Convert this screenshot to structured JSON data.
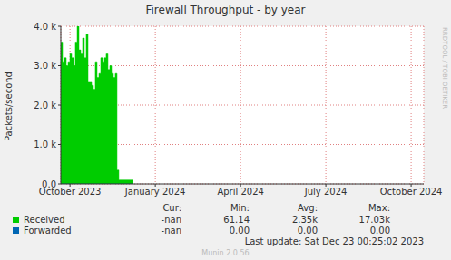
{
  "chart_data": {
    "type": "area",
    "title": "Firewall Throughput - by year",
    "y_label": "Packets/second",
    "side_text": "RRDTOOL / TOBI OETIKER",
    "footer": "Last update: Sat Dec 23 00:25:02 2023",
    "credit": "Munin 2.0.56",
    "x": [
      2023.723,
      2023.7283,
      2023.7336,
      2023.739,
      2023.7443,
      2023.7496,
      2023.7549,
      2023.7602,
      2023.7655,
      2023.7709,
      2023.7762,
      2023.7815,
      2023.7868,
      2023.7921,
      2023.7974,
      2023.8028,
      2023.8081,
      2023.8134,
      2023.8187,
      2023.824,
      2023.8293,
      2023.8347,
      2023.84,
      2023.8453,
      2023.8506,
      2023.8559,
      2023.8612,
      2023.8666,
      2023.8719,
      2023.8772,
      2023.8825,
      2023.8878,
      2023.8931,
      2023.9358
    ],
    "series": [
      {
        "name": "Received",
        "color": "#00cc00",
        "values": [
          3600,
          3100,
          3200,
          3000,
          3100,
          3300,
          3200,
          3000,
          3600,
          4000,
          3400,
          3300,
          3700,
          3200,
          3800,
          2600,
          2600,
          2500,
          2400,
          3100,
          2700,
          2800,
          3200,
          3100,
          3200,
          3300,
          2900,
          3000,
          2800,
          2700,
          2800,
          350,
          100,
          100
        ]
      },
      {
        "name": "Forwarded",
        "color": "#0066b3",
        "values": [
          0,
          0,
          0,
          0,
          0,
          0,
          0,
          0,
          0,
          0,
          0,
          0,
          0,
          0,
          0,
          0,
          0,
          0,
          0,
          0,
          0,
          0,
          0,
          0,
          0,
          0,
          0,
          0,
          0,
          0,
          0,
          0,
          0,
          0
        ]
      }
    ],
    "xlim": [
      2023.723,
      2024.787
    ],
    "xticks": [
      {
        "value": 2023.75,
        "label": "October 2023"
      },
      {
        "value": 2024.0,
        "label": "January 2024"
      },
      {
        "value": 2024.25,
        "label": "April 2024"
      },
      {
        "value": 2024.5,
        "label": "July 2024"
      },
      {
        "value": 2024.75,
        "label": "October 2024"
      }
    ],
    "ylim": [
      0,
      4000
    ],
    "yticks": [
      {
        "value": 0,
        "label": "0.0"
      },
      {
        "value": 1000,
        "label": "1.0 k"
      },
      {
        "value": 2000,
        "label": "2.0 k"
      },
      {
        "value": 3000,
        "label": "3.0 k"
      },
      {
        "value": 4000,
        "label": "4.0 k"
      }
    ],
    "grid": true,
    "legend_table": {
      "header": [
        "Cur:",
        "Min:",
        "Avg:",
        "Max:"
      ],
      "rows": [
        {
          "name": "Received",
          "cells": [
            "-nan",
            "61.14",
            "2.35k",
            "17.03k"
          ]
        },
        {
          "name": "Forwarded",
          "cells": [
            "-nan",
            "0.00",
            "0.00",
            "0.00"
          ]
        }
      ]
    }
  }
}
